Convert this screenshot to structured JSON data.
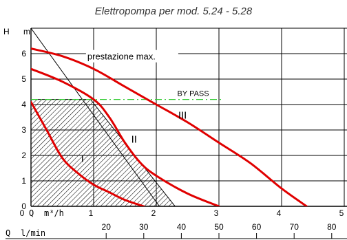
{
  "chart_data": {
    "type": "line",
    "title": "Elettropompa per mod. 5.24 - 5.28",
    "xlabel": "Q m³/h",
    "ylabel": "H m",
    "secondary_xlabel": "Q l/min",
    "xlim": [
      0,
      5
    ],
    "ylim": [
      0,
      7
    ],
    "grid": true,
    "x_ticks": [
      "0",
      "1",
      "2",
      "3",
      "4",
      "5"
    ],
    "y_ticks": [
      "0",
      "1",
      "2",
      "3",
      "4",
      "5",
      "6"
    ],
    "secondary_x_ticks": [
      "20",
      "30",
      "40",
      "50",
      "60",
      "70",
      "80"
    ],
    "series": [
      {
        "name": "I",
        "color": "#e00000",
        "x": [
          0.0,
          0.25,
          0.5,
          0.75,
          1.0,
          1.25,
          1.5,
          1.8
        ],
        "y": [
          4.1,
          3.0,
          1.9,
          1.3,
          0.85,
          0.55,
          0.25,
          0.0
        ]
      },
      {
        "name": "II",
        "color": "#e00000",
        "x": [
          0.0,
          0.5,
          1.0,
          1.25,
          1.5,
          1.75,
          2.0,
          2.5,
          3.0
        ],
        "y": [
          5.4,
          4.9,
          4.2,
          3.5,
          2.5,
          1.7,
          1.2,
          0.5,
          0.0
        ]
      },
      {
        "name": "III",
        "color": "#e00000",
        "x": [
          0.0,
          0.5,
          1.0,
          1.5,
          2.0,
          2.5,
          3.0,
          3.5,
          4.0,
          4.4
        ],
        "y": [
          6.2,
          5.9,
          5.4,
          4.7,
          4.0,
          3.3,
          2.5,
          1.7,
          0.7,
          0.0
        ]
      }
    ],
    "by_pass": {
      "label": "BY PASS",
      "y": 4.2,
      "x_end": 3.05,
      "color": "#33cc33"
    },
    "max_line": {
      "x": [
        0.0,
        2.05
      ],
      "y": [
        7.0,
        0.0
      ]
    },
    "hatched_region": {
      "x": [
        0.0,
        0.95,
        2.3
      ],
      "y": [
        4.2,
        4.2,
        0.0
      ]
    },
    "annotations": [
      {
        "text": "prestazione max.",
        "x": 0.9,
        "y": 5.9
      }
    ],
    "series_labels": [
      {
        "text": "I",
        "x": 0.8,
        "y": 1.75
      },
      {
        "text": "II",
        "x": 1.6,
        "y": 2.5
      },
      {
        "text": "III",
        "x": 2.35,
        "y": 3.45
      }
    ]
  }
}
